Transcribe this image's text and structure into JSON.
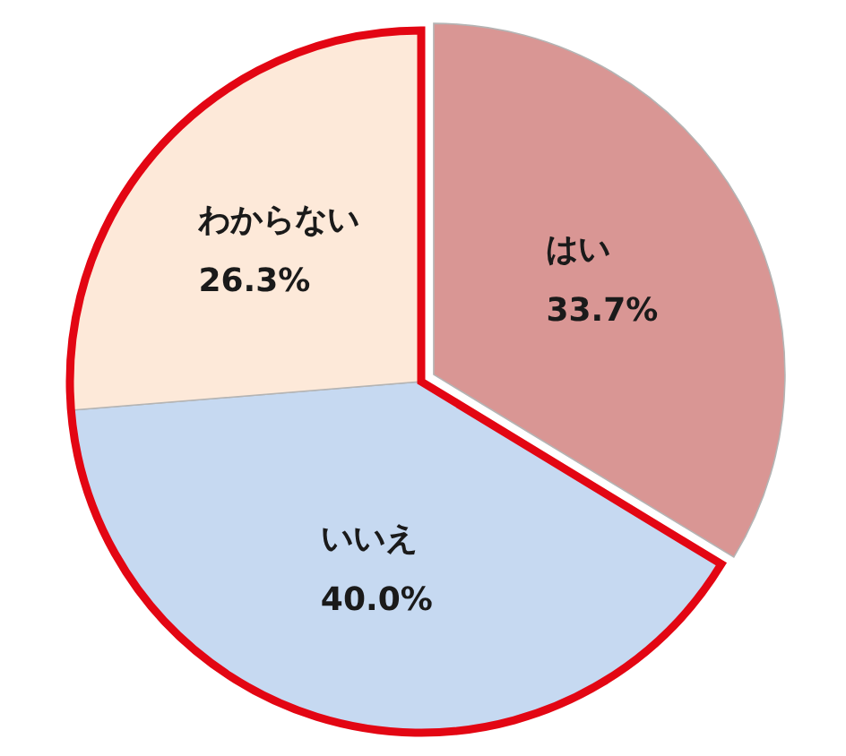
{
  "chart_data": {
    "type": "pie",
    "categories": [
      "はい",
      "いいえ",
      "わからない"
    ],
    "values": [
      33.7,
      40.0,
      26.3
    ],
    "colors": [
      "#d99694",
      "#c6d9f1",
      "#fde9d9"
    ],
    "value_labels": [
      "33.7%",
      "40.0%",
      "26.3%"
    ]
  }
}
